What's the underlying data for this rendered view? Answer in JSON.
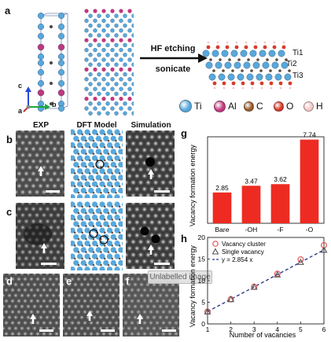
{
  "panel_labels": {
    "a": "a",
    "b": "b",
    "c": "c",
    "d": "d",
    "e": "e",
    "f": "f",
    "g": "g",
    "h": "h"
  },
  "panel_a": {
    "arrow_text": [
      "HF etching",
      "sonicate"
    ],
    "layers": [
      "Ti1",
      "Ti2",
      "Ti3"
    ],
    "axes": {
      "a": "a",
      "b": "b",
      "c": "c"
    },
    "legend": [
      {
        "label": "Ti",
        "color": "#58a8dc"
      },
      {
        "label": "Al",
        "color": "#c0387e"
      },
      {
        "label": "C",
        "color": "#9a5b2e"
      },
      {
        "label": "O",
        "color": "#d83a2a"
      },
      {
        "label": "H",
        "color": "#f3c7c7"
      }
    ]
  },
  "column_headers": {
    "exp": "EXP",
    "dft": "DFT Model",
    "sim": "Simulation"
  },
  "tooltip": "Unlabelled image",
  "chart_data": [
    {
      "type": "bar",
      "panel": "g",
      "categories": [
        "Bare",
        "-OH",
        "-F",
        "-O"
      ],
      "values": [
        2.85,
        3.47,
        3.62,
        7.74
      ],
      "value_labels": [
        "2.85",
        "3.47",
        "3.62",
        "7.74"
      ],
      "ylabel": "Vacancy formation energy",
      "ylim": [
        0,
        8
      ],
      "bar_color": "#ee2b22"
    },
    {
      "type": "scatter",
      "panel": "h",
      "xlabel": "Number of vacancies",
      "ylabel": "Vacancy formation energy",
      "xlim": [
        1,
        6
      ],
      "ylim": [
        0,
        20
      ],
      "xticks": [
        1,
        2,
        3,
        4,
        5,
        6
      ],
      "yticks": [
        0,
        5,
        10,
        15,
        20
      ],
      "series": [
        {
          "name": "Vacancy cluster",
          "marker": "circle",
          "color": "#e25555",
          "x": [
            1,
            2,
            3,
            4,
            5,
            6
          ],
          "y": [
            2.85,
            5.7,
            8.6,
            11.6,
            14.9,
            18.2
          ]
        },
        {
          "name": "Single vacancy",
          "marker": "triangle",
          "color": "#555555",
          "x": [
            1,
            2,
            3,
            4,
            5,
            6
          ],
          "y": [
            2.85,
            5.7,
            8.55,
            11.4,
            14.3,
            17.1
          ]
        }
      ],
      "fit": {
        "name": "y = 2.854 x",
        "slope": 2.854,
        "style": "dashed",
        "color": "#2a3a8a"
      },
      "legend_position": "top-left"
    }
  ]
}
